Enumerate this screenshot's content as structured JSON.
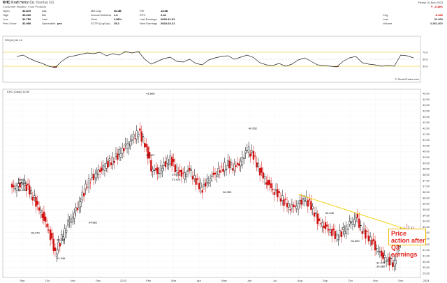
{
  "header": {
    "symbol": "KHC",
    "name": "Kraft Heinz Co.",
    "exchange": "Nasdaq GS",
    "sector": "Consumer Staples / Food Products",
    "date": "Friday 10-Nov-2023",
    "change_pct": "-0.18%",
    "quote_left": [
      {
        "label": "Open",
        "value": "32.870"
      },
      {
        "label": "High",
        "value": "33.020"
      },
      {
        "label": "Low",
        "value": "32.750"
      },
      {
        "label": "Prev Close",
        "value": "32.950"
      }
    ],
    "quote_mid1": [
      {
        "label": "Ask",
        "value": ""
      },
      {
        "label": "Bid",
        "value": ""
      },
      {
        "label": "Last",
        "value": ""
      },
      {
        "label": "Optionable",
        "value": "yes"
      }
    ],
    "quote_mid2": [
      {
        "label": "Mkt Cap",
        "value": "40.4B"
      },
      {
        "label": "Annual Dividend",
        "value": "1.6"
      },
      {
        "label": "Yield",
        "value": "4.86%"
      },
      {
        "label": "SCTR (LrgCap)",
        "value": "25.2"
      }
    ],
    "quote_mid3": [
      {
        "label": "P/E",
        "value": "13.58"
      },
      {
        "label": "EPS",
        "value": "2.42"
      },
      {
        "label": "Last Earnings",
        "value": "2023-11-01"
      },
      {
        "label": "Next Earnings",
        "value": "2024-02-21"
      }
    ],
    "quote_right": [
      {
        "label": "Chg",
        "value": "-0.060"
      },
      {
        "label": "Last",
        "value": "32.890"
      },
      {
        "label": "Volume",
        "value": "6,562,802"
      }
    ],
    "credit": "© StockCharts.com"
  },
  "rsi_panel": {
    "label": "RSI(14) 54.16",
    "ticks": [
      "70.0",
      "50.0",
      "30.0"
    ]
  },
  "price_panel": {
    "label": "KHC (Daily) 32.89",
    "y_ticks": [
      "45.00",
      "44.50",
      "44.00",
      "43.50",
      "43.00",
      "42.50",
      "42.00",
      "41.50",
      "41.00",
      "40.50",
      "40.00",
      "39.50",
      "39.00",
      "38.50",
      "38.00",
      "37.50",
      "37.00",
      "36.50",
      "36.00",
      "35.50",
      "35.00",
      "34.50",
      "34.00",
      "33.50",
      "33.00",
      "32.50",
      "32.00",
      "31.50",
      "31.00",
      "30.50",
      "30.00",
      "29.50"
    ],
    "x_ticks": [
      "Sep",
      "Oct",
      "Nov",
      "Dec",
      "2023",
      "Feb",
      "Mar",
      "Apr",
      "May",
      "Jun",
      "Jul",
      "Aug",
      "Sep",
      "Oct",
      "Nov",
      "Dec",
      "2024"
    ],
    "callout": "Price action after\nQ3 earnings"
  },
  "chart_data": {
    "type": "candlestick",
    "price_range": [
      29.5,
      45.0
    ],
    "rsi_range": [
      0,
      100
    ],
    "points": [
      {
        "x": "Aug 2022",
        "close": 36.9
      },
      {
        "x": "Aug 2022",
        "close": 37.3
      },
      {
        "x": "Sep 2022",
        "close": 36.6
      },
      {
        "x": "Sep 2022",
        "close": 35.6
      },
      {
        "x": "Sep 2022",
        "close": 34.5
      },
      {
        "x": "Sep 2022",
        "close": 33.2
      },
      {
        "x": "Oct 2022",
        "close": 31.2
      },
      {
        "x": "Oct 2022",
        "close": 32.5
      },
      {
        "x": "Oct 2022",
        "close": 33.8
      },
      {
        "x": "Oct 2022",
        "close": 34.6
      },
      {
        "x": "Oct 2022",
        "close": 35.8
      },
      {
        "x": "Nov 2022",
        "close": 37.2
      },
      {
        "x": "Nov 2022",
        "close": 37.9
      },
      {
        "x": "Nov 2022",
        "close": 38.4
      },
      {
        "x": "Nov 2022",
        "close": 38.9
      },
      {
        "x": "Dec 2022",
        "close": 39.2
      },
      {
        "x": "Dec 2022",
        "close": 39.8
      },
      {
        "x": "Dec 2022",
        "close": 40.4
      },
      {
        "x": "Dec 2022",
        "close": 41.0
      },
      {
        "x": "Dec 2022",
        "close": 41.7
      },
      {
        "x": "Jan 2023",
        "close": 40.7
      },
      {
        "x": "Jan 2023",
        "close": 38.6
      },
      {
        "x": "Jan 2023",
        "close": 38.2
      },
      {
        "x": "Jan 2023",
        "close": 38.9
      },
      {
        "x": "Feb 2023",
        "close": 39.3
      },
      {
        "x": "Feb 2023",
        "close": 38.3
      },
      {
        "x": "Feb 2023",
        "close": 37.9
      },
      {
        "x": "Feb 2023",
        "close": 38.4
      },
      {
        "x": "Mar 2023",
        "close": 37.4
      },
      {
        "x": "Mar 2023",
        "close": 36.8
      },
      {
        "x": "Mar 2023",
        "close": 37.6
      },
      {
        "x": "Mar 2023",
        "close": 38.1
      },
      {
        "x": "Apr 2023",
        "close": 38.5
      },
      {
        "x": "Apr 2023",
        "close": 38.9
      },
      {
        "x": "Apr 2023",
        "close": 38.6
      },
      {
        "x": "Apr 2023",
        "close": 39.0
      },
      {
        "x": "May 2023",
        "close": 40.2
      },
      {
        "x": "May 2023",
        "close": 39.6
      },
      {
        "x": "May 2023",
        "close": 38.3
      },
      {
        "x": "May 2023",
        "close": 37.4
      },
      {
        "x": "Jun 2023",
        "close": 36.7
      },
      {
        "x": "Jun 2023",
        "close": 36.2
      },
      {
        "x": "Jun 2023",
        "close": 35.5
      },
      {
        "x": "Jun 2023",
        "close": 35.1
      },
      {
        "x": "Jul 2023",
        "close": 35.4
      },
      {
        "x": "Jul 2023",
        "close": 35.9
      },
      {
        "x": "Jul 2023",
        "close": 35.3
      },
      {
        "x": "Jul 2023",
        "close": 34.1
      },
      {
        "x": "Aug 2023",
        "close": 33.6
      },
      {
        "x": "Aug 2023",
        "close": 33.2
      },
      {
        "x": "Aug 2023",
        "close": 32.6
      },
      {
        "x": "Aug 2023",
        "close": 33.1
      },
      {
        "x": "Sep 2023",
        "close": 33.7
      },
      {
        "x": "Sep 2023",
        "close": 34.3
      },
      {
        "x": "Sep 2023",
        "close": 33.1
      },
      {
        "x": "Sep 2023",
        "close": 32.6
      },
      {
        "x": "Oct 2023",
        "close": 31.8
      },
      {
        "x": "Oct 2023",
        "close": 31.1
      },
      {
        "x": "Oct 2023",
        "close": 30.6
      },
      {
        "x": "Oct 2023",
        "close": 30.3
      },
      {
        "x": "Nov 2023",
        "close": 32.8
      },
      {
        "x": "Nov 2023",
        "close": 33.0
      },
      {
        "x": "Nov 2023",
        "close": 32.89
      }
    ],
    "rsi": [
      58,
      62,
      52,
      44,
      38,
      30,
      26,
      44,
      56,
      60,
      64,
      68,
      66,
      70,
      60,
      66,
      62,
      72,
      68,
      72,
      50,
      36,
      44,
      52,
      56,
      44,
      42,
      50,
      38,
      34,
      48,
      54,
      58,
      60,
      50,
      56,
      62,
      55,
      40,
      34,
      32,
      38,
      30,
      36,
      48,
      54,
      44,
      34,
      32,
      30,
      28,
      44,
      54,
      58,
      40,
      36,
      34,
      30,
      32,
      30,
      62,
      60,
      54
    ],
    "price_labels": [
      {
        "x": "Aug 2022",
        "price": 37.45,
        "text": "37.43"
      },
      {
        "x": "Aug 2022",
        "price": 37.2,
        "text": "36.952"
      },
      {
        "x": "Aug 2022",
        "price": 36.6,
        "text": "36.834"
      },
      {
        "x": "Sep 2022",
        "price": 32.9,
        "text": "33.473"
      },
      {
        "x": "Oct 2022",
        "price": 32.3,
        "text": "32.425"
      },
      {
        "x": "Oct 2022",
        "price": 30.7,
        "text": "31.346"
      },
      {
        "x": "Nov 2022",
        "price": 33.8,
        "text": "34.882"
      },
      {
        "x": "Jan 2023",
        "price": 44.9,
        "text": "41.805"
      },
      {
        "x": "Jan 2023",
        "price": 39.6,
        "text": "39.474"
      },
      {
        "x": "Feb 2023",
        "price": 37.9,
        "text": "37.935"
      },
      {
        "x": "Feb 2023",
        "price": 37.5,
        "text": "37.429"
      },
      {
        "x": "Apr 2023",
        "price": 36.4,
        "text": "36.399"
      },
      {
        "x": "May 2023",
        "price": 41.9,
        "text": "40.952"
      },
      {
        "x": "Aug 2023",
        "price": 34.6,
        "text": "34.406"
      },
      {
        "x": "Sep 2023",
        "price": 32.2,
        "text": "32.400"
      },
      {
        "x": "Oct 2023",
        "price": 30.0,
        "text": "30.680"
      },
      {
        "x": "Oct 2023",
        "price": 30.3,
        "text": "31.075"
      }
    ],
    "trendline": {
      "from": {
        "x": "Jul 2023",
        "price": 36.3
      },
      "to": {
        "x": "Nov 2023",
        "price": 32.7
      }
    }
  }
}
